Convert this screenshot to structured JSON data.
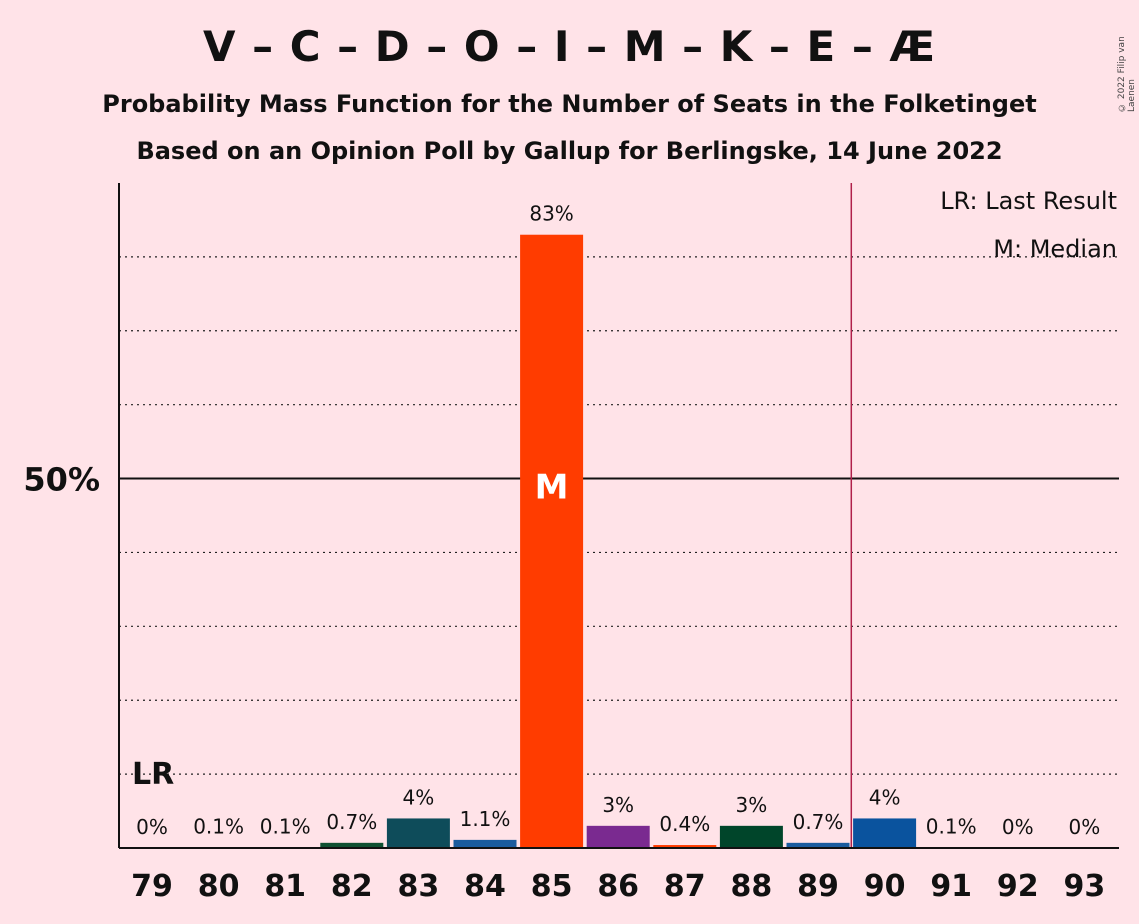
{
  "title": "V – C – D – O – I – M – K – E – Æ",
  "subtitle1": "Probability Mass Function for the Number of Seats in the Folketinget",
  "subtitle2": "Based on an Opinion Poll by Gallup for Berlingske, 14 June 2022",
  "copyright": "© 2022 Filip van Laenen",
  "legend": {
    "last_result": "LR: Last Result",
    "median": "M: Median"
  },
  "chart_data": {
    "type": "bar",
    "categories": [
      "79",
      "80",
      "81",
      "82",
      "83",
      "84",
      "85",
      "86",
      "87",
      "88",
      "89",
      "90",
      "91",
      "92",
      "93"
    ],
    "values": [
      0,
      0.1,
      0.1,
      0.7,
      4,
      1.1,
      83,
      3,
      0.4,
      3,
      0.7,
      4,
      0.1,
      0,
      0
    ],
    "value_labels": [
      "0%",
      "0.1%",
      "0.1%",
      "0.7%",
      "4%",
      "1.1%",
      "83%",
      "3%",
      "0.4%",
      "3%",
      "0.7%",
      "4%",
      "0.1%",
      "0%",
      "0%"
    ],
    "colors": [
      "#888888",
      "#888888",
      "#888888",
      "#0f5132",
      "#0e4c5a",
      "#1a5c9e",
      "#ff3c00",
      "#7a2a90",
      "#ff3c00",
      "#00452a",
      "#1a5c9e",
      "#0a539e",
      "#888888",
      "#888888",
      "#888888"
    ],
    "ylim": [
      0,
      90
    ],
    "y_tick_label": "50%",
    "y_tick_value": 50,
    "gridlines": [
      10,
      20,
      30,
      40,
      60,
      70,
      80
    ],
    "median_seat": "85",
    "median_marker": "M",
    "last_result_seat": "79",
    "last_result_marker": "LR",
    "majority_line_after": "89",
    "majority_color": "#b0204a",
    "legend_placement": "top-right"
  }
}
